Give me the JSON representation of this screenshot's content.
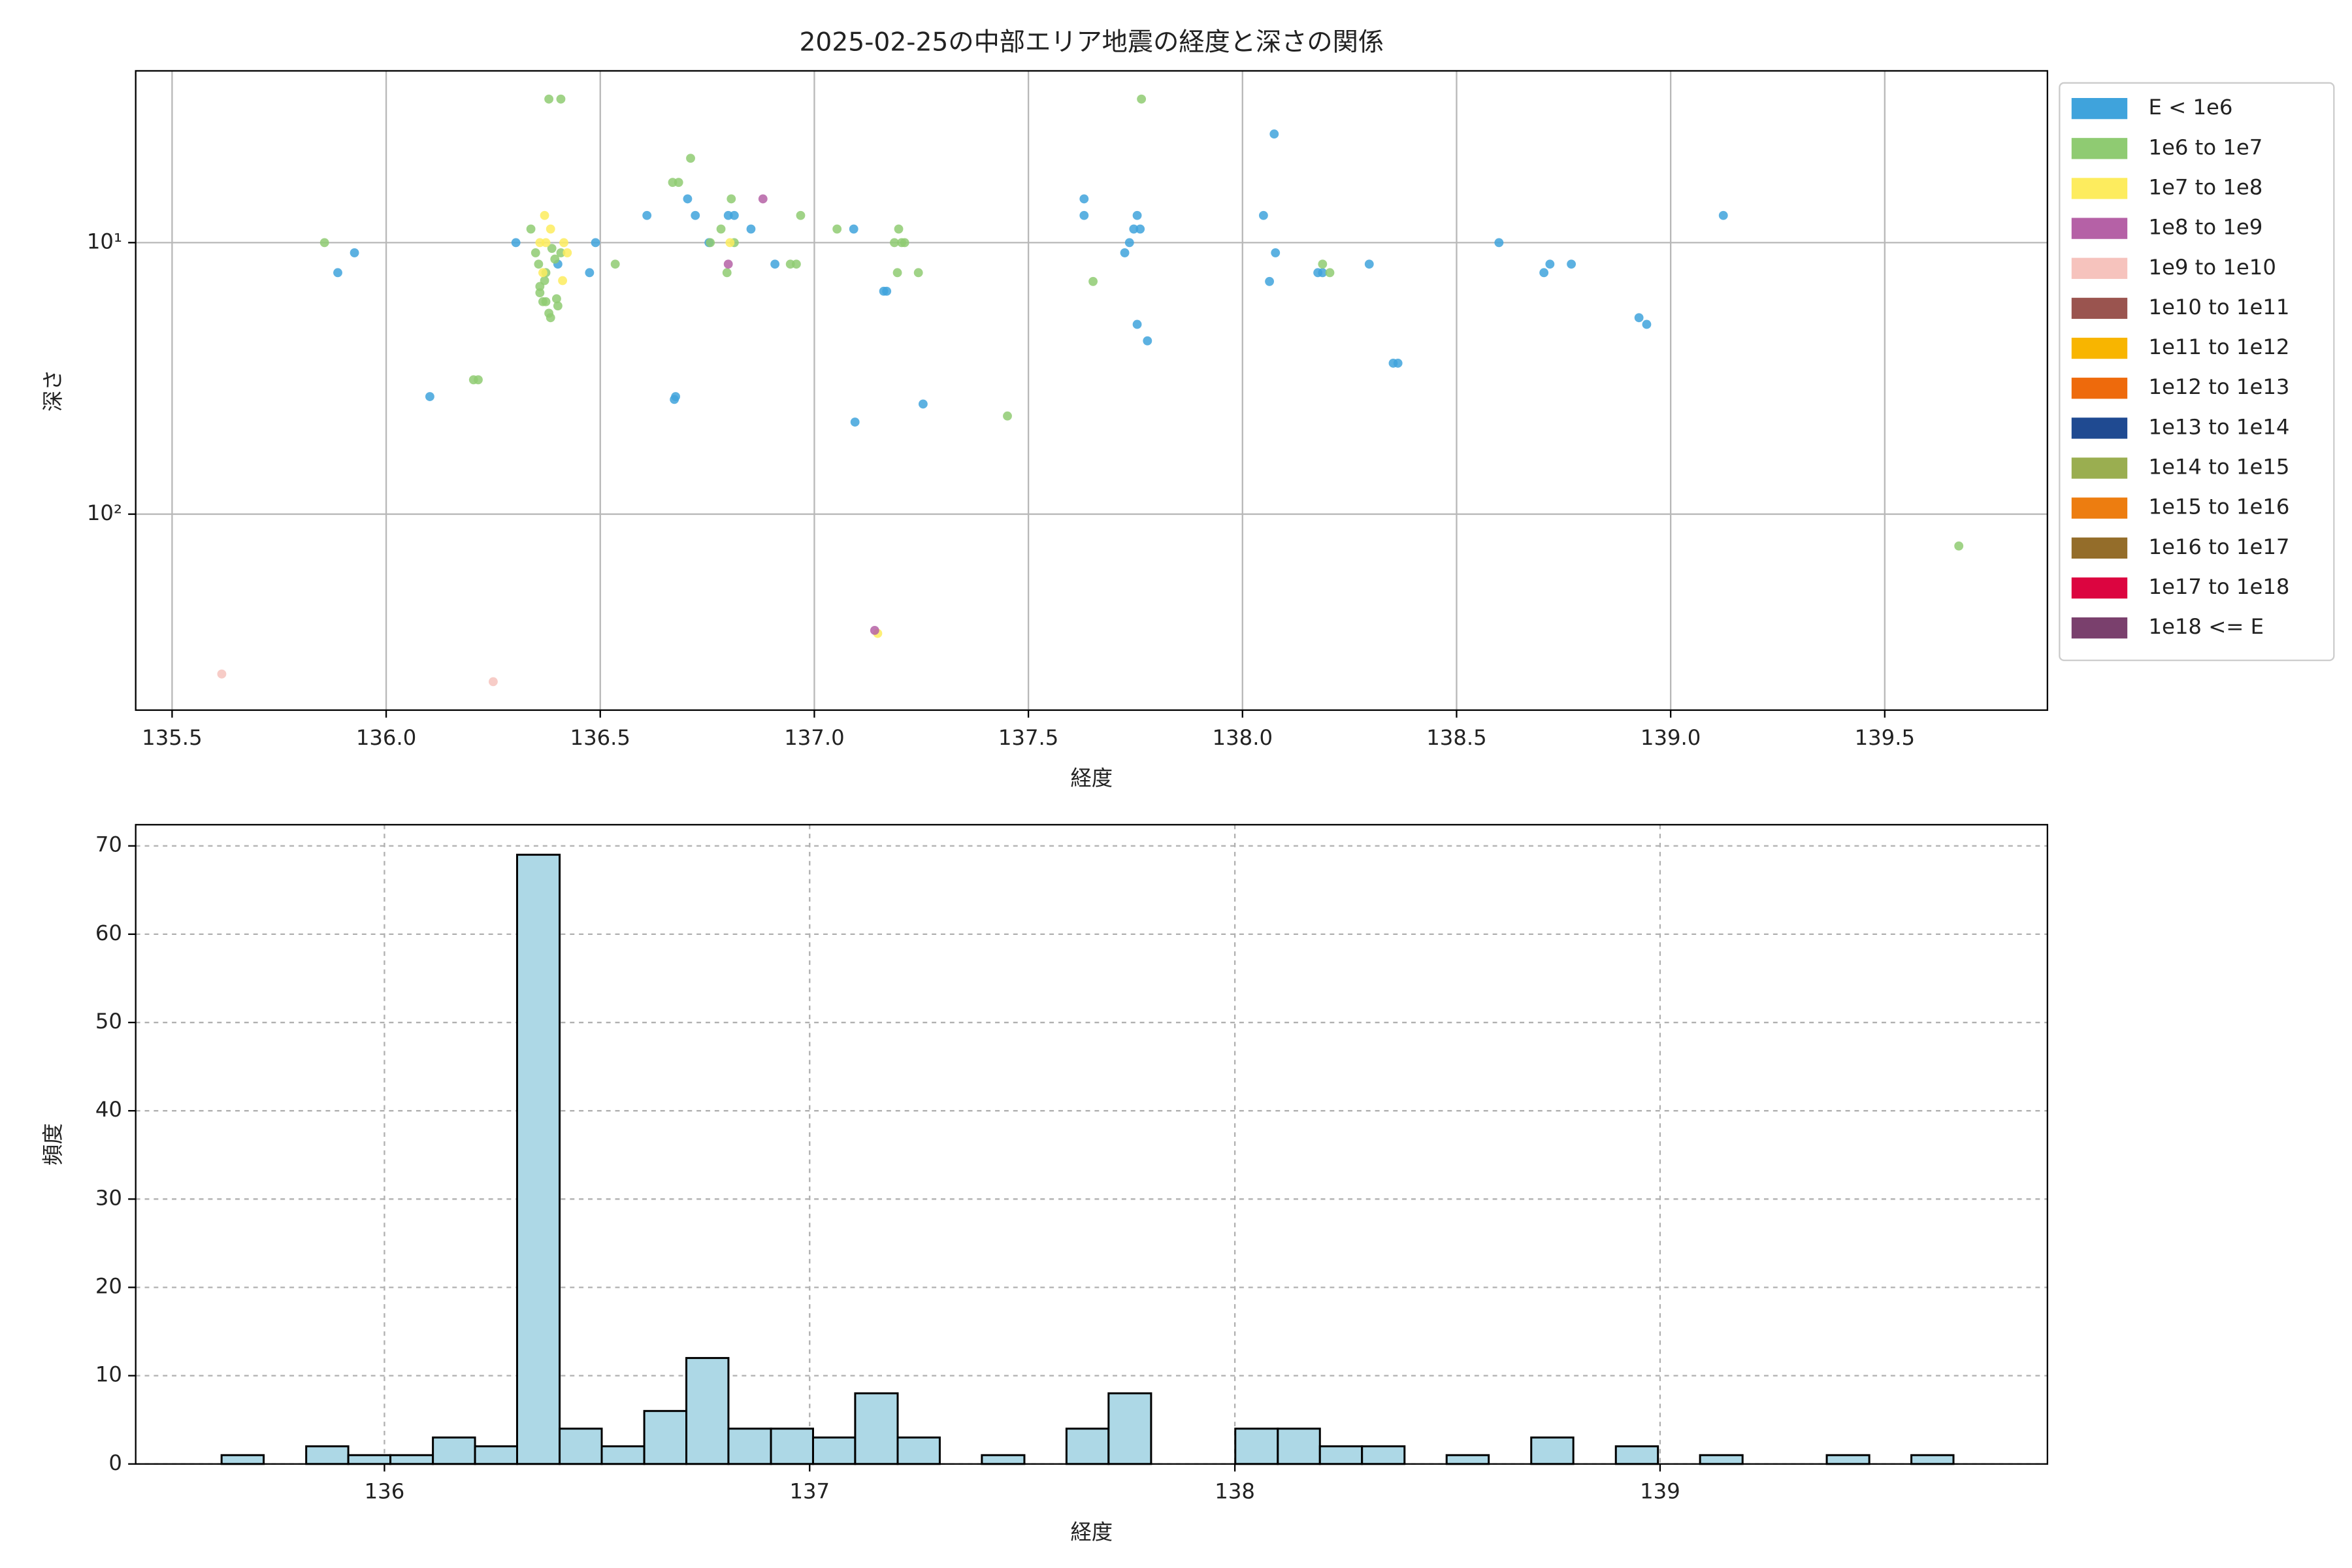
{
  "chart_data": [
    {
      "type": "scatter",
      "title": "2025-02-25の中部エリア地震の経度と深さの関係",
      "xlabel": "経度",
      "ylabel": "深さ",
      "xlim": [
        135.415,
        139.88
      ],
      "ylim": [
        527,
        2.33
      ],
      "yscale": "log",
      "xticks": [
        135.5,
        {
          "value": 136,
          "label": "136.0"
        },
        136.5,
        {
          "value": 137,
          "label": "137.0"
        },
        137.5,
        {
          "value": 138,
          "label": "138.0"
        },
        138.5,
        {
          "value": 139,
          "label": "139.0"
        },
        139.5
      ],
      "yticks": [
        {
          "value": 10,
          "label": "10¹"
        },
        {
          "value": 100,
          "label": "10²"
        }
      ],
      "grid": true,
      "grid_style": "solid",
      "legend": "outside right",
      "series": [
        {
          "name": "E < 1e6",
          "color": "#3fa3dc",
          "x": [
            135.887,
            135.926,
            136.102,
            136.303,
            136.401,
            136.475,
            136.489,
            136.609,
            136.673,
            136.676,
            136.704,
            136.722,
            136.754,
            136.799,
            136.813,
            136.852,
            136.908,
            137.092,
            137.095,
            137.162,
            137.169,
            137.254,
            137.63,
            137.63,
            137.725,
            137.736,
            137.746,
            137.754,
            137.754,
            137.761,
            137.778,
            138.049,
            138.063,
            138.074,
            138.077,
            138.176,
            138.187,
            138.296,
            138.352,
            138.363,
            138.599,
            138.704,
            138.718,
            138.768,
            138.926,
            138.944,
            139.123
          ],
          "y": [
            12.9,
            10.9,
            36.9,
            10,
            12,
            12.9,
            10,
            7.94,
            37.8,
            36.9,
            6.9,
            7.94,
            10,
            7.94,
            7.94,
            8.91,
            12,
            8.91,
            45.8,
            15.1,
            15.1,
            39.3,
            6.9,
            7.94,
            10.9,
            10,
            8.91,
            7.94,
            20,
            8.91,
            23,
            7.94,
            13.9,
            3.98,
            10.9,
            12.9,
            12.9,
            12,
            27.8,
            27.8,
            10,
            12.9,
            12,
            12,
            18.9,
            20,
            7.94
          ]
        },
        {
          "name": "1e6 to 1e7",
          "color": "#8fcb72",
          "x": [
            135.856,
            136.204,
            136.215,
            136.338,
            136.349,
            136.356,
            136.359,
            136.359,
            136.366,
            136.37,
            136.373,
            136.373,
            136.38,
            136.384,
            136.387,
            136.394,
            136.398,
            136.401,
            136.408,
            136.38,
            136.408,
            136.535,
            136.669,
            136.683,
            136.711,
            136.757,
            136.782,
            136.796,
            136.806,
            136.813,
            136.944,
            136.958,
            136.968,
            137.053,
            137.187,
            137.197,
            137.204,
            137.211,
            137.194,
            137.243,
            137.451,
            137.651,
            137.764,
            138.187,
            138.204,
            139.673
          ],
          "y": [
            10,
            32,
            32,
            8.91,
            10.9,
            12,
            14.5,
            15.3,
            16.5,
            13.8,
            12.9,
            16.5,
            18.2,
            18.9,
            10.5,
            11.5,
            16.1,
            17.1,
            10.9,
            2.96,
            2.96,
            12,
            6,
            6,
            4.89,
            10,
            8.91,
            12.9,
            6.9,
            10,
            12,
            12,
            7.94,
            8.91,
            10,
            8.91,
            10,
            10,
            12.9,
            12.9,
            43.5,
            13.9,
            2.96,
            12,
            12.9,
            131
          ]
        },
        {
          "name": "1e7 to 1e8",
          "color": "#fdec5e",
          "x": [
            136.37,
            136.359,
            136.373,
            136.384,
            136.415,
            136.423,
            136.366,
            136.412,
            136.803,
            137.148
          ],
          "y": [
            7.94,
            10,
            10,
            8.91,
            10,
            10.9,
            12.9,
            13.8,
            10,
            275
          ]
        },
        {
          "name": "1e8 to 1e9",
          "color": "#b561a6",
          "x": [
            136.88,
            136.799,
            137.141
          ],
          "y": [
            6.9,
            12,
            268
          ]
        },
        {
          "name": "1e9 to 1e10",
          "color": "#f6c3bd",
          "x": [
            135.616,
            136.25
          ],
          "y": [
            388,
            414
          ]
        },
        {
          "name": "1e10 to 1e11",
          "color": "#9a544f",
          "x": [],
          "y": []
        },
        {
          "name": "1e11 to 1e12",
          "color": "#f8b500",
          "x": [],
          "y": []
        },
        {
          "name": "1e12 to 1e13",
          "color": "#ee6a0c",
          "x": [],
          "y": []
        },
        {
          "name": "1e13 to 1e14",
          "color": "#1f4a91",
          "x": [],
          "y": []
        },
        {
          "name": "1e14 to 1e15",
          "color": "#9aae50",
          "x": [],
          "y": []
        },
        {
          "name": "1e15 to 1e16",
          "color": "#ed7d10",
          "x": [],
          "y": []
        },
        {
          "name": "1e16 to 1e17",
          "color": "#946d2a",
          "x": [],
          "y": []
        },
        {
          "name": "1e17 to 1e18",
          "color": "#dc0540",
          "x": [],
          "y": []
        },
        {
          "name": "1e18 <= E",
          "color": "#7a406d",
          "x": [],
          "y": []
        }
      ]
    },
    {
      "type": "histogram",
      "xlabel": "経度",
      "ylabel": "頻度",
      "color": "#add8e6",
      "edgecolor": "#000000",
      "xlim": [
        135.415,
        139.911
      ],
      "ylim": [
        0,
        72.4
      ],
      "xticks": [
        136,
        137,
        138,
        139
      ],
      "yticks": [
        0,
        10,
        20,
        30,
        40,
        50,
        60,
        70
      ],
      "grid": true,
      "grid_style": "dashed",
      "bins": [
        135.617,
        135.716,
        135.816,
        135.915,
        136.014,
        136.114,
        136.213,
        136.312,
        136.412,
        136.511,
        136.611,
        136.71,
        136.809,
        136.909,
        137.008,
        137.107,
        137.207,
        137.306,
        137.405,
        137.505,
        137.604,
        137.703,
        137.803,
        137.902,
        138.001,
        138.101,
        138.2,
        138.299,
        138.399,
        138.498,
        138.597,
        138.697,
        138.796,
        138.896,
        138.995,
        139.094,
        139.194,
        139.293,
        139.392,
        139.492,
        139.591,
        139.69
      ],
      "values": [
        1,
        0,
        2,
        1,
        1,
        3,
        2,
        69,
        4,
        2,
        6,
        12,
        4,
        4,
        3,
        8,
        3,
        0,
        1,
        0,
        4,
        8,
        0,
        0,
        4,
        4,
        2,
        2,
        0,
        1,
        0,
        3,
        0,
        2,
        0,
        1,
        0,
        0,
        1,
        0,
        1
      ]
    }
  ]
}
